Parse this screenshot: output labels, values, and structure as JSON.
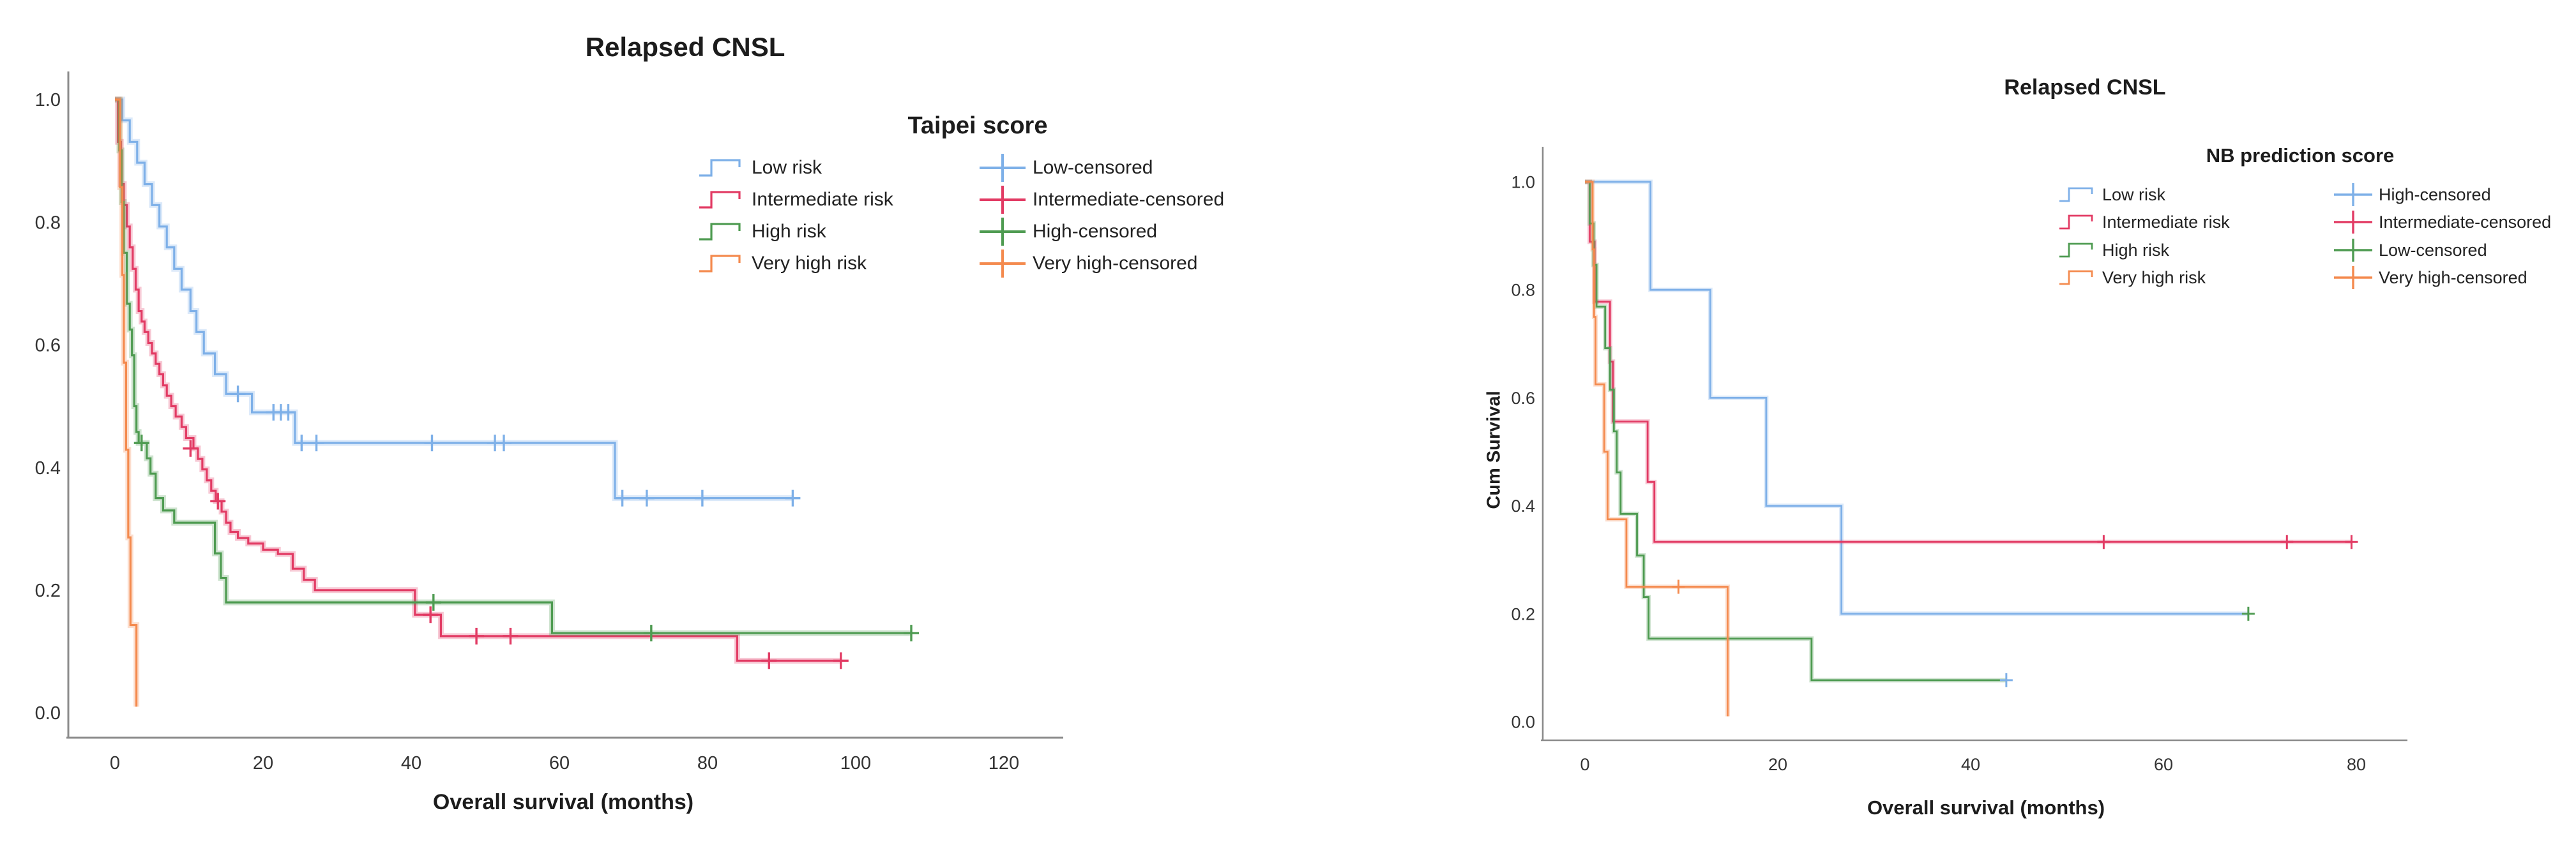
{
  "chart_data": [
    {
      "type": "line",
      "subtype": "kaplan-meier-step",
      "title": "Relapsed CNSL",
      "xlabel": "Overall survival (months)",
      "ylabel": "",
      "xlim": [
        0,
        120
      ],
      "ylim": [
        0.0,
        1.0
      ],
      "x_ticks": [
        0,
        20,
        40,
        60,
        80,
        100,
        120
      ],
      "y_ticks": [
        "0.0",
        "0.2",
        "0.4",
        "0.6",
        "0.8",
        "1.0"
      ],
      "grid": "off",
      "legend": {
        "title": "Taipei score",
        "position": "upper-right",
        "censored": [
          {
            "label": "Low-censored",
            "color": "#7EB0E8"
          },
          {
            "label": "Intermediate-censored",
            "color": "#E23B64"
          },
          {
            "label": "High-censored",
            "color": "#4E9B51"
          },
          {
            "label": "Very high-censored",
            "color": "#F48A4E"
          }
        ]
      },
      "series": [
        {
          "name": "Low risk",
          "color": "#7EB0E8",
          "censor_color": "#7EB0E8",
          "points": [
            [
              0,
              1.0
            ],
            [
              1,
              0.966
            ],
            [
              2,
              0.931
            ],
            [
              3,
              0.897
            ],
            [
              4,
              0.862
            ],
            [
              5,
              0.828
            ],
            [
              6,
              0.793
            ],
            [
              7,
              0.759
            ],
            [
              8,
              0.724
            ],
            [
              9,
              0.69
            ],
            [
              10.2,
              0.655
            ],
            [
              11,
              0.621
            ],
            [
              12,
              0.586
            ],
            [
              13.5,
              0.552
            ],
            [
              15,
              0.52
            ],
            [
              18.5,
              0.49
            ],
            [
              24.3,
              0.44
            ],
            [
              67.5,
              0.35
            ]
          ],
          "end": 91.5,
          "censors": [
            [
              16.6,
              0.52
            ],
            [
              21.4,
              0.49
            ],
            [
              22.4,
              0.49
            ],
            [
              23.4,
              0.49
            ],
            [
              25.2,
              0.44
            ],
            [
              27.2,
              0.44
            ],
            [
              42.8,
              0.44
            ],
            [
              51.3,
              0.44
            ],
            [
              52.5,
              0.44
            ],
            [
              68.5,
              0.35
            ],
            [
              71.8,
              0.35
            ],
            [
              79.3,
              0.35
            ],
            [
              91.5,
              0.35
            ]
          ]
        },
        {
          "name": "Intermediate risk",
          "color": "#E23B64",
          "censor_color": "#E23B64",
          "points": [
            [
              0,
              1.0
            ],
            [
              0.4,
              0.931
            ],
            [
              0.8,
              0.862
            ],
            [
              1.2,
              0.828
            ],
            [
              1.6,
              0.793
            ],
            [
              2,
              0.759
            ],
            [
              2.4,
              0.724
            ],
            [
              2.8,
              0.69
            ],
            [
              3.2,
              0.655
            ],
            [
              3.6,
              0.638
            ],
            [
              4,
              0.621
            ],
            [
              4.5,
              0.603
            ],
            [
              5,
              0.586
            ],
            [
              5.5,
              0.569
            ],
            [
              6,
              0.552
            ],
            [
              6.5,
              0.534
            ],
            [
              7,
              0.517
            ],
            [
              7.6,
              0.5
            ],
            [
              8.2,
              0.483
            ],
            [
              9,
              0.466
            ],
            [
              9.6,
              0.448
            ],
            [
              10.6,
              0.431
            ],
            [
              11.2,
              0.414
            ],
            [
              11.8,
              0.397
            ],
            [
              12.4,
              0.379
            ],
            [
              13,
              0.362
            ],
            [
              13.6,
              0.345
            ],
            [
              14.4,
              0.328
            ],
            [
              15,
              0.31
            ],
            [
              15.6,
              0.295
            ],
            [
              16.6,
              0.285
            ],
            [
              18,
              0.276
            ],
            [
              20,
              0.266
            ],
            [
              22,
              0.259
            ],
            [
              24,
              0.235
            ],
            [
              25.5,
              0.217
            ],
            [
              27,
              0.2
            ],
            [
              40.5,
              0.16
            ],
            [
              44,
              0.125
            ],
            [
              84,
              0.085
            ]
          ],
          "end": 98,
          "censors": [
            [
              10.2,
              0.431
            ],
            [
              13.9,
              0.345
            ],
            [
              42.6,
              0.16
            ],
            [
              48.8,
              0.125
            ],
            [
              53.4,
              0.125
            ],
            [
              88.3,
              0.085
            ],
            [
              98,
              0.085
            ]
          ]
        },
        {
          "name": "High risk",
          "color": "#4E9B51",
          "censor_color": "#4E9B51",
          "points": [
            [
              0,
              1.0
            ],
            [
              0.6,
              0.917
            ],
            [
              0.9,
              0.833
            ],
            [
              1.2,
              0.75
            ],
            [
              1.6,
              0.667
            ],
            [
              2,
              0.625
            ],
            [
              2.3,
              0.583
            ],
            [
              2.6,
              0.5
            ],
            [
              2.9,
              0.458
            ],
            [
              3.2,
              0.44
            ],
            [
              4.3,
              0.415
            ],
            [
              4.8,
              0.39
            ],
            [
              5.5,
              0.35
            ],
            [
              6.5,
              0.33
            ],
            [
              8,
              0.31
            ],
            [
              13.5,
              0.26
            ],
            [
              14.3,
              0.22
            ],
            [
              15,
              0.18
            ],
            [
              59,
              0.13
            ]
          ],
          "end": 107.5,
          "censors": [
            [
              3.6,
              0.44
            ],
            [
              43,
              0.18
            ],
            [
              72.4,
              0.13
            ],
            [
              107.5,
              0.13
            ]
          ]
        },
        {
          "name": "Very high risk",
          "color": "#F48A4E",
          "censor_color": "#F48A4E",
          "points": [
            [
              0,
              1.0
            ],
            [
              0.7,
              0.857
            ],
            [
              1,
              0.714
            ],
            [
              1.2,
              0.571
            ],
            [
              1.5,
              0.429
            ],
            [
              1.8,
              0.286
            ],
            [
              2.1,
              0.143
            ],
            [
              2.9,
              0.01
            ]
          ],
          "end": 2.9,
          "censors": []
        }
      ]
    },
    {
      "type": "line",
      "subtype": "kaplan-meier-step",
      "title": "Relapsed CNSL",
      "xlabel": "Overall survival (months)",
      "ylabel": "Cum Survival",
      "xlim": [
        0,
        80
      ],
      "ylim": [
        0.0,
        1.0
      ],
      "x_ticks": [
        0,
        20,
        40,
        60,
        80
      ],
      "y_ticks": [
        "0.0",
        "0.2",
        "0.4",
        "0.6",
        "0.8",
        "1.0"
      ],
      "grid": "off",
      "legend": {
        "title": "NB prediction score",
        "position": "upper-right",
        "censored": [
          {
            "label": "High-censored",
            "color": "#7EB0E8"
          },
          {
            "label": "Intermediate-censored",
            "color": "#E23B64"
          },
          {
            "label": "Low-censored",
            "color": "#4E9B51"
          },
          {
            "label": "Very high-censored",
            "color": "#F48A4E"
          }
        ]
      },
      "series": [
        {
          "name": "Low risk",
          "color": "#7EB0E8",
          "censor_color": "#4E9B51",
          "points": [
            [
              0,
              1.0
            ],
            [
              6.8,
              0.8
            ],
            [
              13,
              0.6
            ],
            [
              18.8,
              0.4
            ],
            [
              26.6,
              0.2
            ]
          ],
          "end": 68.8,
          "censors": [
            [
              68.8,
              0.2
            ]
          ]
        },
        {
          "name": "Intermediate risk",
          "color": "#E23B64",
          "censor_color": "#E23B64",
          "points": [
            [
              0,
              1.0
            ],
            [
              0.5,
              0.889
            ],
            [
              1,
              0.778
            ],
            [
              2.6,
              0.667
            ],
            [
              2.9,
              0.556
            ],
            [
              6.5,
              0.444
            ],
            [
              7.2,
              0.333
            ]
          ],
          "end": 79.5,
          "censors": [
            [
              53.8,
              0.333
            ],
            [
              72.8,
              0.333
            ],
            [
              79.5,
              0.333
            ]
          ]
        },
        {
          "name": "High risk",
          "color": "#4E9B51",
          "censor_color": "#7EB0E8",
          "points": [
            [
              0,
              1.0
            ],
            [
              0.5,
              0.923
            ],
            [
              0.9,
              0.846
            ],
            [
              1.2,
              0.769
            ],
            [
              2.1,
              0.692
            ],
            [
              2.6,
              0.615
            ],
            [
              3,
              0.538
            ],
            [
              3.3,
              0.462
            ],
            [
              3.7,
              0.385
            ],
            [
              5.4,
              0.308
            ],
            [
              6.1,
              0.231
            ],
            [
              6.6,
              0.154
            ],
            [
              23.5,
              0.077
            ]
          ],
          "end": 43.7,
          "censors": [
            [
              43.7,
              0.077
            ]
          ]
        },
        {
          "name": "Very high risk",
          "color": "#F48A4E",
          "censor_color": "#F48A4E",
          "points": [
            [
              0,
              1.0
            ],
            [
              0.8,
              0.875
            ],
            [
              0.95,
              0.75
            ],
            [
              1.1,
              0.625
            ],
            [
              2,
              0.5
            ],
            [
              2.35,
              0.375
            ],
            [
              4.3,
              0.25
            ],
            [
              14.8,
              0.01
            ]
          ],
          "end": 14.8,
          "censors": [
            [
              9.7,
              0.25
            ]
          ]
        }
      ]
    }
  ]
}
